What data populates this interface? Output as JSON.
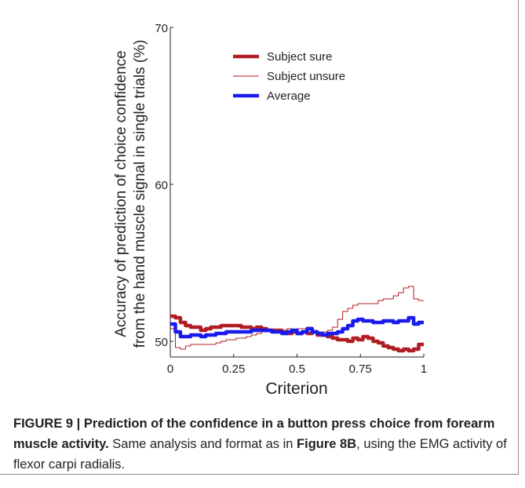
{
  "chart_data": {
    "type": "line",
    "xlabel": "Criterion",
    "ylabel_line1": "Accuracy of prediction of choice confidence",
    "ylabel_line2": "from the hand muscle signal in single trials (%)",
    "xlim": [
      0,
      1
    ],
    "ylim": [
      49,
      70
    ],
    "xticks": [
      0,
      0.25,
      0.5,
      0.75,
      1
    ],
    "xtick_labels": [
      "0",
      "0.25",
      "0.5",
      "0.75",
      "1"
    ],
    "yticks": [
      50,
      60,
      70
    ],
    "ytick_labels": [
      "50",
      "60",
      "70"
    ],
    "legend_position": "top",
    "series": [
      {
        "name": "Subject sure",
        "color": "#b01e23",
        "style": "thick",
        "x": [
          0,
          0.02,
          0.04,
          0.06,
          0.08,
          0.1,
          0.12,
          0.14,
          0.16,
          0.18,
          0.2,
          0.22,
          0.24,
          0.26,
          0.28,
          0.3,
          0.32,
          0.34,
          0.36,
          0.38,
          0.4,
          0.42,
          0.44,
          0.46,
          0.48,
          0.5,
          0.52,
          0.54,
          0.56,
          0.58,
          0.6,
          0.62,
          0.64,
          0.66,
          0.68,
          0.7,
          0.72,
          0.74,
          0.76,
          0.78,
          0.8,
          0.82,
          0.84,
          0.86,
          0.88,
          0.9,
          0.92,
          0.94,
          0.96,
          0.98,
          1.0
        ],
        "values": [
          51.6,
          51.5,
          51.2,
          51.0,
          50.9,
          50.9,
          50.7,
          50.8,
          50.9,
          50.9,
          51.0,
          51.0,
          51.0,
          51.0,
          50.9,
          50.9,
          50.8,
          50.9,
          50.8,
          50.7,
          50.7,
          50.7,
          50.6,
          50.5,
          50.6,
          50.5,
          50.6,
          50.5,
          50.6,
          50.4,
          50.4,
          50.3,
          50.2,
          50.1,
          50.1,
          50.0,
          50.2,
          50.1,
          50.3,
          50.2,
          50.0,
          49.9,
          49.7,
          49.6,
          49.5,
          49.4,
          49.5,
          49.4,
          49.5,
          49.8,
          49.8
        ]
      },
      {
        "name": "Subject unsure",
        "color": "#b01e23",
        "style": "thin",
        "x": [
          0,
          0.02,
          0.04,
          0.06,
          0.08,
          0.1,
          0.12,
          0.14,
          0.16,
          0.18,
          0.2,
          0.22,
          0.24,
          0.26,
          0.28,
          0.3,
          0.32,
          0.34,
          0.36,
          0.38,
          0.4,
          0.42,
          0.44,
          0.46,
          0.48,
          0.5,
          0.52,
          0.54,
          0.56,
          0.58,
          0.6,
          0.62,
          0.64,
          0.66,
          0.68,
          0.7,
          0.72,
          0.74,
          0.76,
          0.78,
          0.8,
          0.82,
          0.84,
          0.86,
          0.88,
          0.9,
          0.92,
          0.94,
          0.96,
          0.98,
          1.0
        ],
        "values": [
          50.8,
          49.6,
          49.5,
          49.7,
          49.8,
          49.8,
          49.8,
          49.8,
          49.8,
          49.9,
          50.0,
          50.1,
          50.1,
          50.2,
          50.2,
          50.3,
          50.4,
          50.5,
          50.6,
          50.6,
          50.6,
          50.7,
          50.7,
          50.8,
          50.7,
          50.8,
          50.8,
          50.9,
          50.6,
          50.5,
          50.6,
          50.7,
          50.9,
          51.4,
          51.9,
          52.1,
          52.3,
          52.4,
          52.4,
          52.4,
          52.4,
          52.6,
          52.7,
          52.7,
          52.9,
          53.1,
          53.4,
          53.5,
          52.7,
          52.6,
          52.6
        ]
      },
      {
        "name": "Average",
        "color": "#1a1aee",
        "style": "thick",
        "x": [
          0,
          0.02,
          0.04,
          0.06,
          0.08,
          0.1,
          0.12,
          0.14,
          0.16,
          0.18,
          0.2,
          0.22,
          0.24,
          0.26,
          0.28,
          0.3,
          0.32,
          0.34,
          0.36,
          0.38,
          0.4,
          0.42,
          0.44,
          0.46,
          0.48,
          0.5,
          0.52,
          0.54,
          0.56,
          0.58,
          0.6,
          0.62,
          0.64,
          0.66,
          0.68,
          0.7,
          0.72,
          0.74,
          0.76,
          0.78,
          0.8,
          0.82,
          0.84,
          0.86,
          0.88,
          0.9,
          0.92,
          0.94,
          0.96,
          0.98,
          1.0
        ],
        "values": [
          51.1,
          50.6,
          50.3,
          50.3,
          50.4,
          50.4,
          50.3,
          50.4,
          50.4,
          50.5,
          50.5,
          50.6,
          50.6,
          50.6,
          50.6,
          50.6,
          50.7,
          50.7,
          50.7,
          50.7,
          50.6,
          50.6,
          50.5,
          50.6,
          50.7,
          50.5,
          50.6,
          50.8,
          50.6,
          50.5,
          50.4,
          50.5,
          50.5,
          50.6,
          50.8,
          51.0,
          51.3,
          51.4,
          51.3,
          51.3,
          51.2,
          51.2,
          51.3,
          51.3,
          51.2,
          51.3,
          51.3,
          51.5,
          51.1,
          51.2,
          51.2
        ]
      }
    ]
  },
  "caption": {
    "label": "FIGURE 9 | Prediction of the confidence in a button press choice from forearm muscle activity.",
    "text_1": " Same analysis and format as in ",
    "ref": "Figure 8B",
    "text_2": ", using the EMG activity of flexor carpi radialis."
  }
}
